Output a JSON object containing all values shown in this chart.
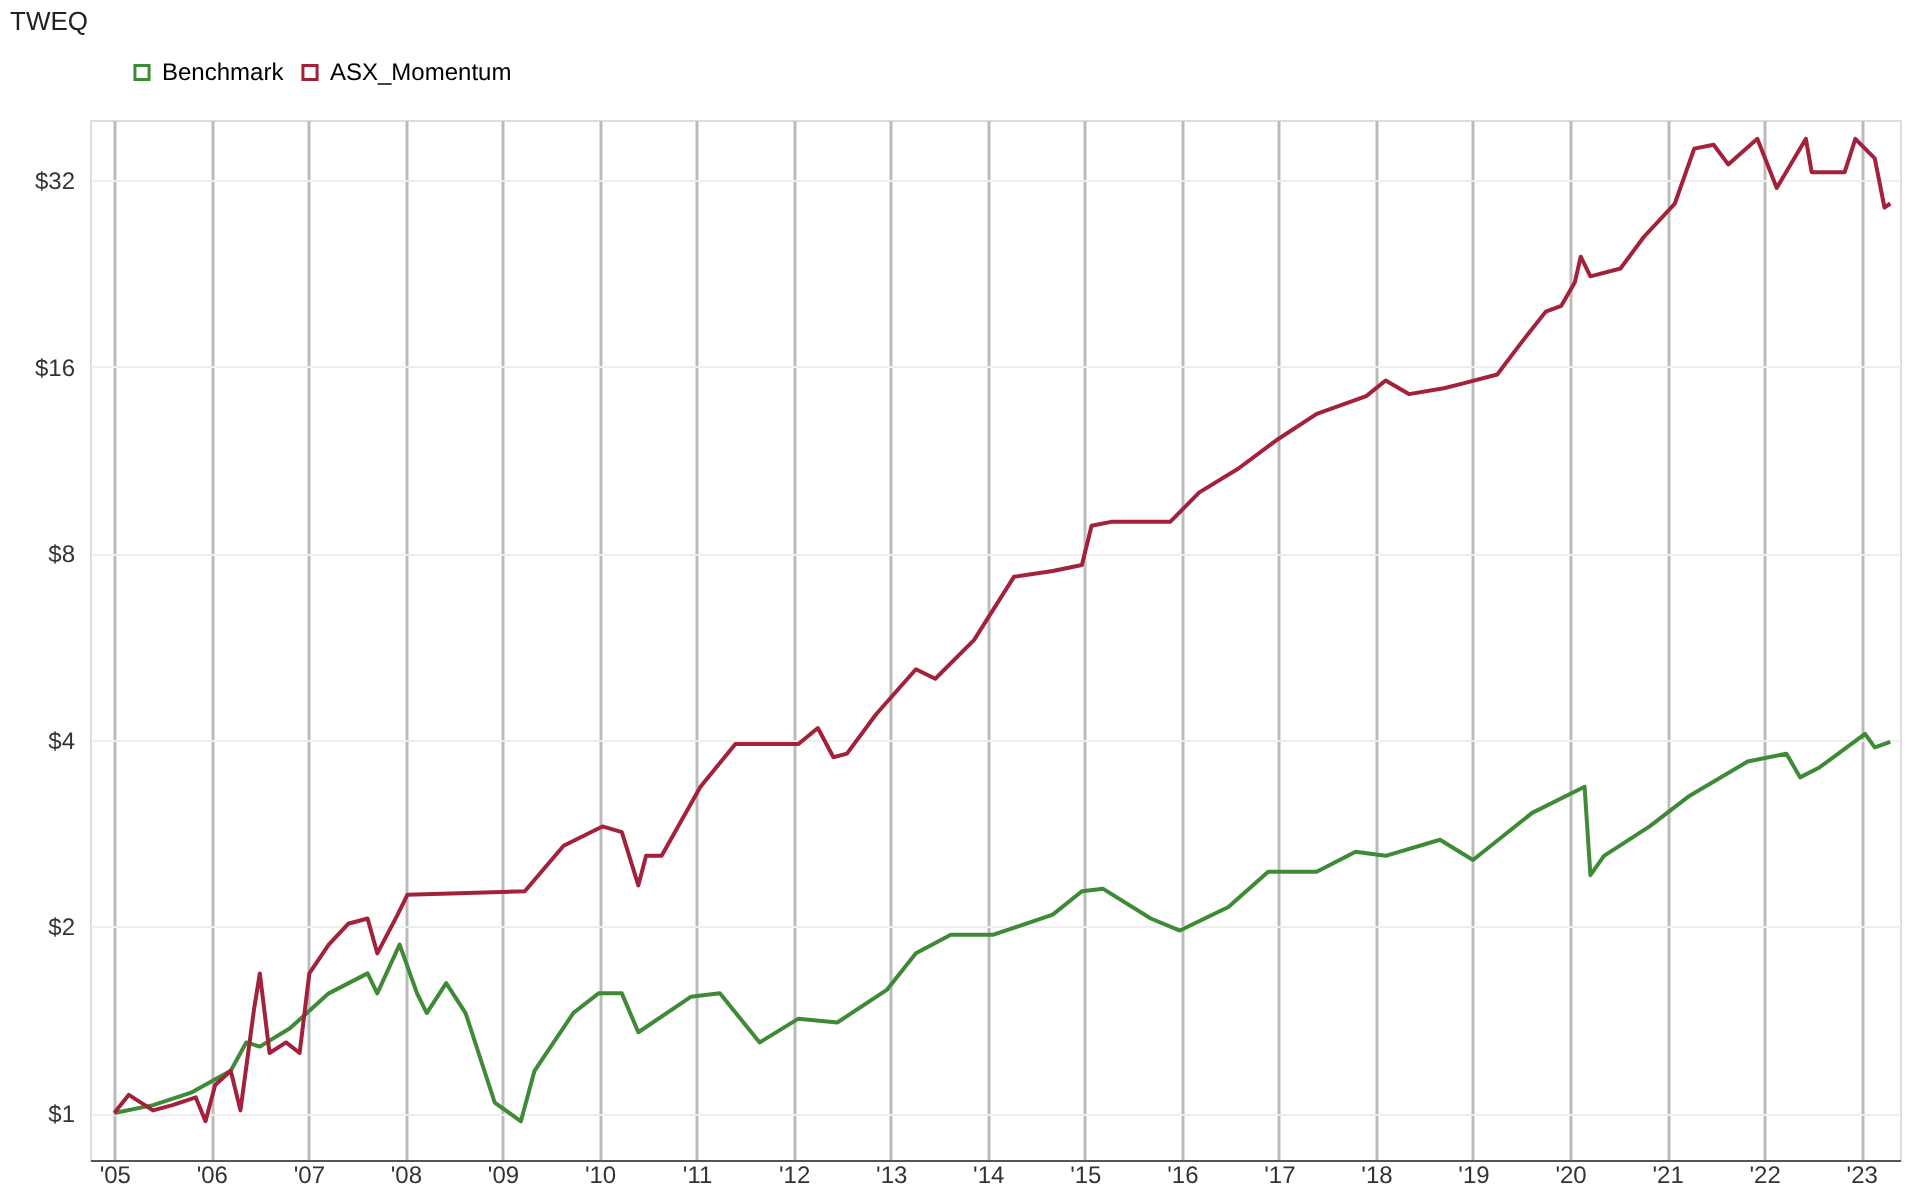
{
  "chart_data": {
    "type": "line",
    "title": "TWEQ",
    "log": "y",
    "grid": true,
    "legend": "top left",
    "marker": "none",
    "line_style": "solid",
    "xlim": [
      2004.75,
      2023.4
    ],
    "xticks": [
      {
        "value": 2005,
        "label": "'05"
      },
      {
        "value": 2006,
        "label": "'06"
      },
      {
        "value": 2007,
        "label": "'07"
      },
      {
        "value": 2008,
        "label": "'08"
      },
      {
        "value": 2009,
        "label": "'09"
      },
      {
        "value": 2010,
        "label": "'10"
      },
      {
        "value": 2011,
        "label": "'11"
      },
      {
        "value": 2012,
        "label": "'12"
      },
      {
        "value": 2013,
        "label": "'13"
      },
      {
        "value": 2014,
        "label": "'14"
      },
      {
        "value": 2015,
        "label": "'15"
      },
      {
        "value": 2016,
        "label": "'16"
      },
      {
        "value": 2017,
        "label": "'17"
      },
      {
        "value": 2018,
        "label": "'18"
      },
      {
        "value": 2019,
        "label": "'19"
      },
      {
        "value": 2020,
        "label": "'20"
      },
      {
        "value": 2021,
        "label": "'21"
      },
      {
        "value": 2022,
        "label": "'22"
      },
      {
        "value": 2023,
        "label": "'23"
      }
    ],
    "ylim": [
      0.84,
      40
    ],
    "yticks": [
      {
        "value": 1,
        "label": "$1"
      },
      {
        "value": 2,
        "label": "$2"
      },
      {
        "value": 4,
        "label": "$4"
      },
      {
        "value": 8,
        "label": "$8"
      },
      {
        "value": 16,
        "label": "$16"
      },
      {
        "value": 32,
        "label": "$32"
      }
    ],
    "series": [
      {
        "name": "Benchmark",
        "color": "#3f8a36",
        "x": [
          2005.0,
          2005.4,
          2005.8,
          2006.2,
          2006.36,
          2006.5,
          2006.81,
          2007.21,
          2007.61,
          2007.71,
          2007.94,
          2008.12,
          2008.22,
          2008.42,
          2008.62,
          2008.92,
          2009.19,
          2009.33,
          2009.73,
          2009.99,
          2010.23,
          2010.4,
          2010.94,
          2011.24,
          2011.65,
          2012.05,
          2012.45,
          2012.96,
          2013.26,
          2013.62,
          2014.06,
          2014.67,
          2014.97,
          2015.19,
          2015.68,
          2015.98,
          2016.48,
          2016.89,
          2017.39,
          2017.79,
          2018.1,
          2018.66,
          2019.0,
          2019.61,
          2020.15,
          2020.21,
          2020.35,
          2020.82,
          2021.22,
          2021.83,
          2022.23,
          2022.37,
          2022.57,
          2023.04,
          2023.14,
          2023.3
        ],
        "values": [
          1.0,
          1.03,
          1.08,
          1.17,
          1.3,
          1.28,
          1.37,
          1.56,
          1.68,
          1.56,
          1.87,
          1.56,
          1.45,
          1.62,
          1.45,
          1.04,
          0.97,
          1.17,
          1.45,
          1.56,
          1.56,
          1.35,
          1.54,
          1.56,
          1.3,
          1.42,
          1.4,
          1.58,
          1.81,
          1.94,
          1.94,
          2.09,
          2.28,
          2.3,
          2.06,
          1.97,
          2.15,
          2.45,
          2.45,
          2.64,
          2.6,
          2.76,
          2.56,
          3.05,
          3.36,
          2.42,
          2.6,
          2.9,
          3.24,
          3.69,
          3.8,
          3.48,
          3.61,
          4.09,
          3.89,
          3.97
        ]
      },
      {
        "name": "ASX_Momentum",
        "color": "#a3213b",
        "x": [
          2005.0,
          2005.15,
          2005.4,
          2005.6,
          2005.84,
          2005.94,
          2006.04,
          2006.2,
          2006.3,
          2006.44,
          2006.5,
          2006.6,
          2006.77,
          2006.91,
          2007.01,
          2007.21,
          2007.41,
          2007.61,
          2007.71,
          2007.92,
          2008.02,
          2009.23,
          2009.63,
          2010.03,
          2010.23,
          2010.4,
          2010.48,
          2010.64,
          2011.04,
          2011.4,
          2012.05,
          2012.25,
          2012.41,
          2012.55,
          2012.85,
          2013.26,
          2013.46,
          2013.86,
          2014.27,
          2014.67,
          2014.97,
          2015.07,
          2015.27,
          2015.88,
          2016.18,
          2016.58,
          2016.99,
          2017.39,
          2017.9,
          2018.1,
          2018.34,
          2018.7,
          2018.86,
          2019.25,
          2019.51,
          2019.75,
          2019.91,
          2020.05,
          2020.11,
          2020.21,
          2020.52,
          2020.76,
          2021.08,
          2021.28,
          2021.48,
          2021.63,
          2021.93,
          2022.13,
          2022.43,
          2022.49,
          2022.83,
          2022.94,
          2023.14,
          2023.24,
          2023.3
        ],
        "values": [
          1.0,
          1.07,
          1.01,
          1.03,
          1.06,
          0.97,
          1.11,
          1.17,
          1.01,
          1.47,
          1.68,
          1.25,
          1.3,
          1.25,
          1.68,
          1.87,
          2.02,
          2.06,
          1.81,
          2.09,
          2.25,
          2.28,
          2.7,
          2.9,
          2.84,
          2.33,
          2.6,
          2.6,
          3.36,
          3.94,
          3.94,
          4.18,
          3.75,
          3.8,
          4.4,
          5.2,
          5.02,
          5.8,
          7.33,
          7.49,
          7.66,
          8.86,
          8.99,
          8.99,
          10.03,
          10.95,
          12.22,
          13.43,
          14.34,
          15.2,
          14.45,
          14.77,
          14.98,
          15.54,
          17.59,
          19.63,
          20.06,
          21.9,
          24.07,
          22.38,
          23.04,
          25.9,
          29.33,
          35.96,
          36.48,
          33.92,
          37.3,
          31.08,
          37.3,
          32.95,
          32.95,
          37.3,
          34.68,
          28.9,
          29.33
        ]
      }
    ]
  }
}
